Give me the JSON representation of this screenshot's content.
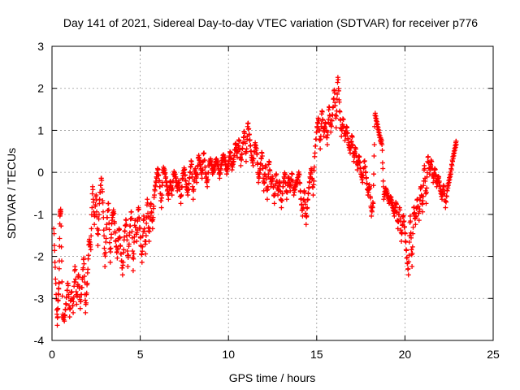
{
  "chart_data": {
    "type": "scatter",
    "title": "Day 141 of 2021, Sidereal Day-to-day VTEC variation (SDTVAR) for receiver p776",
    "xlabel": "GPS time / hours",
    "ylabel": "SDTVAR / TECUs",
    "xlim": [
      0,
      25
    ],
    "ylim": [
      -4,
      3
    ],
    "xticks": [
      "0",
      "5",
      "10",
      "15",
      "20",
      "25"
    ],
    "yticks": [
      "-4",
      "-3",
      "-2",
      "-1",
      "0",
      "1",
      "2",
      "3"
    ],
    "grid": true,
    "marker": "+",
    "color": "#ff0000",
    "series": [
      {
        "name": "SDTVAR",
        "x": [
          0.1,
          0.2,
          0.3,
          0.35,
          0.4,
          0.45,
          0.5,
          0.6,
          0.7,
          0.8,
          0.9,
          1.0,
          1.1,
          1.2,
          1.3,
          1.4,
          1.5,
          1.6,
          1.7,
          1.8,
          1.9,
          2.0,
          2.1,
          2.2,
          2.3,
          2.4,
          2.5,
          2.6,
          2.7,
          2.8,
          2.9,
          3.0,
          3.1,
          3.2,
          3.3,
          3.4,
          3.5,
          3.6,
          3.7,
          3.8,
          3.9,
          4.0,
          4.1,
          4.2,
          4.3,
          4.4,
          4.5,
          4.6,
          4.7,
          4.8,
          4.9,
          5.0,
          5.1,
          5.2,
          5.3,
          5.4,
          5.5,
          5.6,
          5.7,
          5.8,
          5.9,
          6.0,
          6.1,
          6.2,
          6.3,
          6.4,
          6.5,
          6.6,
          6.7,
          6.8,
          6.9,
          7.0,
          7.1,
          7.2,
          7.3,
          7.4,
          7.5,
          7.6,
          7.7,
          7.8,
          7.9,
          8.0,
          8.1,
          8.2,
          8.3,
          8.4,
          8.5,
          8.6,
          8.7,
          8.8,
          8.9,
          9.0,
          9.1,
          9.2,
          9.3,
          9.4,
          9.5,
          9.6,
          9.7,
          9.8,
          9.9,
          10.0,
          10.1,
          10.2,
          10.3,
          10.4,
          10.5,
          10.6,
          10.7,
          10.8,
          10.9,
          11.0,
          11.1,
          11.2,
          11.3,
          11.4,
          11.5,
          11.6,
          11.7,
          11.8,
          11.9,
          12.0,
          12.1,
          12.2,
          12.3,
          12.4,
          12.5,
          12.6,
          12.7,
          12.8,
          12.9,
          13.0,
          13.1,
          13.2,
          13.3,
          13.4,
          13.5,
          13.6,
          13.7,
          13.8,
          13.9,
          14.0,
          14.1,
          14.2,
          14.3,
          14.4,
          14.5,
          14.6,
          14.7,
          14.8,
          14.9,
          15.0,
          15.1,
          15.2,
          15.3,
          15.4,
          15.5,
          15.6,
          15.7,
          15.8,
          15.9,
          16.0,
          16.1,
          16.2,
          16.3,
          16.4,
          16.5,
          16.6,
          16.7,
          16.8,
          16.9,
          17.0,
          17.1,
          17.2,
          17.3,
          17.4,
          17.5,
          17.6,
          17.7,
          17.8,
          17.9,
          18.0,
          18.1,
          18.2,
          18.3,
          18.4,
          18.5,
          18.6,
          18.7,
          18.8,
          18.9,
          19.0,
          19.1,
          19.2,
          19.3,
          19.4,
          19.5,
          19.6,
          19.7,
          19.8,
          19.9,
          20.0,
          20.1,
          20.2,
          20.3,
          20.4,
          20.5,
          20.6,
          20.7,
          20.8,
          20.9,
          21.0,
          21.1,
          21.2,
          21.3,
          21.4,
          21.5,
          21.6,
          21.7,
          21.8,
          21.9,
          22.0,
          22.1,
          22.2,
          22.3,
          22.4,
          22.5,
          22.6,
          22.7,
          22.8,
          22.9
        ],
        "y": [
          -1.3,
          -2.5,
          -3.6,
          -3.0,
          -2.6,
          -1.0,
          -0.9,
          -3.4,
          -3.5,
          -3.1,
          -2.6,
          -3.4,
          -2.8,
          -3.3,
          -2.2,
          -3.1,
          -2.4,
          -3.2,
          -2.7,
          -2.0,
          -3.3,
          -2.6,
          -1.6,
          -1.8,
          -0.3,
          -1.2,
          -0.5,
          -1.7,
          -0.6,
          -0.1,
          -0.9,
          -2.2,
          -1.2,
          -0.7,
          -2.1,
          -1.1,
          -0.9,
          -1.6,
          -2.0,
          -1.3,
          -1.9,
          -2.4,
          -1.5,
          -1.1,
          -2.2,
          -1.4,
          -0.9,
          -2.3,
          -1.1,
          -1.6,
          -0.8,
          -1.5,
          -2.1,
          -1.0,
          -1.9,
          -0.6,
          -1.6,
          -0.7,
          -1.3,
          -0.5,
          -0.2,
          0.1,
          -0.3,
          -0.8,
          0.1,
          0.0,
          -0.3,
          -0.6,
          -0.2,
          -0.5,
          0.0,
          -0.1,
          -0.4,
          -0.2,
          -0.7,
          -0.1,
          0.1,
          -0.3,
          -0.5,
          -0.1,
          0.3,
          -0.6,
          0.1,
          -0.2,
          0.4,
          0.2,
          -0.1,
          0.5,
          0.0,
          -0.3,
          0.2,
          0.3,
          0.0,
          0.1,
          0.3,
          0.2,
          -0.1,
          0.2,
          0.4,
          0.3,
          0.0,
          0.2,
          0.5,
          0.1,
          0.3,
          0.7,
          0.4,
          0.8,
          0.2,
          0.6,
          1.0,
          0.3,
          1.2,
          0.8,
          0.4,
          0.2,
          0.7,
          0.5,
          -0.2,
          0.1,
          0.5,
          -0.4,
          0.2,
          -0.6,
          0.3,
          -0.3,
          -0.1,
          -0.7,
          0.0,
          -0.5,
          -0.2,
          -0.8,
          -0.3,
          0.0,
          -0.6,
          -0.1,
          -0.4,
          0.0,
          -0.5,
          -0.3,
          -0.2,
          0.0,
          -0.6,
          -1.0,
          -0.4,
          -1.2,
          -0.6,
          -0.2,
          0.1,
          -0.5,
          0.5,
          1.0,
          1.3,
          0.6,
          1.5,
          0.9,
          1.2,
          0.7,
          1.6,
          1.0,
          1.4,
          2.0,
          1.1,
          2.3,
          1.5,
          0.9,
          1.3,
          0.8,
          1.1,
          0.7,
          0.5,
          0.9,
          0.3,
          0.6,
          0.1,
          0.4,
          0.0,
          -0.2,
          0.3,
          -0.1,
          -0.5,
          -0.3,
          -1.0,
          -0.7,
          1.4,
          1.2,
          1.0,
          0.8,
          0.7,
          -0.6,
          -0.4,
          -0.5,
          -0.7,
          -0.6,
          -0.8,
          -1.0,
          -0.7,
          -1.3,
          -0.8,
          -1.6,
          -1.0,
          -1.4,
          -2.0,
          -2.4,
          -1.0,
          -2.2,
          -0.8,
          -1.2,
          -0.6,
          -1.1,
          -0.3,
          -0.9,
          0.2,
          -0.7,
          0.4,
          0.0,
          0.3,
          -0.2,
          0.1,
          -0.3,
          -0.1,
          -0.4,
          -0.6,
          -0.3,
          -0.8,
          -0.4,
          -0.2,
          0.0,
          0.3,
          0.5,
          0.7
        ]
      }
    ]
  }
}
